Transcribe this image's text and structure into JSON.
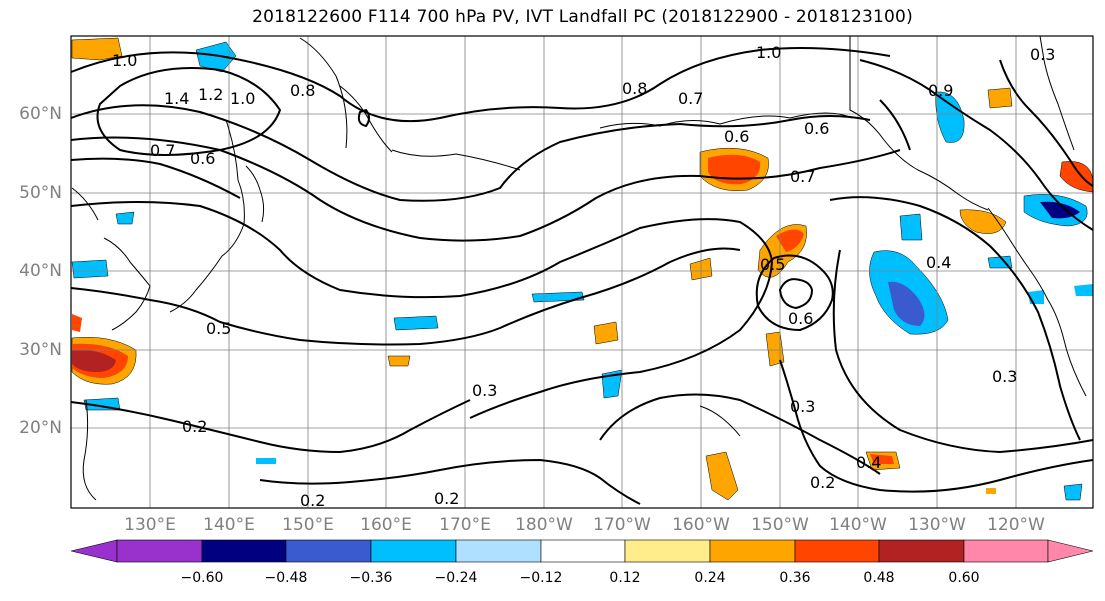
{
  "title": "2018122600 F114 700 hPa PV, IVT Landfall PC (2018122900 - 2018123100)",
  "lat_labels": [
    "60°N",
    "50°N",
    "40°N",
    "30°N",
    "20°N"
  ],
  "lon_labels": [
    "130°E",
    "140°E",
    "150°E",
    "160°E",
    "170°E",
    "180°W",
    "170°W",
    "160°W",
    "150°W",
    "140°W",
    "130°W",
    "120°W"
  ],
  "contour_labels": [
    "1.0",
    "1.4",
    "1.2",
    "1.0",
    "0.8",
    "0.7",
    "0.6",
    "0.5",
    "0.3",
    "0.2",
    "0.2",
    "0.2",
    "1.0",
    "0.8",
    "0.7",
    "0.6",
    "0.7",
    "0.6",
    "0.5",
    "0.6",
    "0.3",
    "0.4",
    "0.2",
    "0.3",
    "0.4",
    "0.9",
    "0.3"
  ],
  "colorbar": {
    "colors": [
      "#9932cc",
      "#000080",
      "#3a5bd0",
      "#00bfff",
      "#b0e0ff",
      "#ffffff",
      "#ffec8b",
      "#ffa500",
      "#ff4500",
      "#b22222",
      "#ff88aa"
    ],
    "ticks": [
      "−0.60",
      "−0.48",
      "−0.36",
      "−0.24",
      "−0.12",
      "0.12",
      "0.24",
      "0.36",
      "0.48",
      "0.60"
    ]
  }
}
